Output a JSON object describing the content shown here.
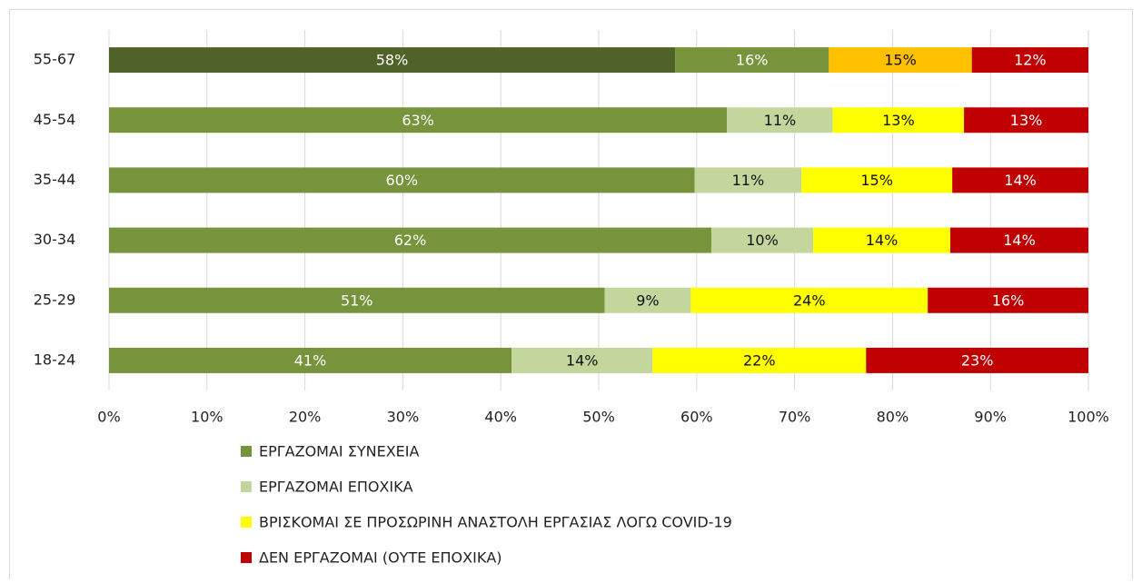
{
  "chart_data": {
    "type": "stacked_barh",
    "categories": [
      "55-67",
      "45-54",
      "35-44",
      "30-34",
      "25-29",
      "18-24"
    ],
    "series": [
      {
        "name": "ΕΡΓΑΖΟΜΑΙ ΣΥΝΕΧΕΙΑ",
        "color": "#77933c",
        "colors": [
          "#4f6228",
          "#77933c",
          "#77933c",
          "#77933c",
          "#77933c",
          "#77933c"
        ],
        "values": [
          57.8,
          63.1,
          59.8,
          61.5,
          50.6,
          41.1
        ],
        "value_labels": [
          "58%",
          "63%",
          "60%",
          "62%",
          "51%",
          "41%"
        ]
      },
      {
        "name": "ΕΡΓΑΖΟΜΑΙ ΕΠΟΧΙΚΑ",
        "color": "#c3d69b",
        "colors": [
          "#77933c",
          "#c3d69b",
          "#c3d69b",
          "#c3d69b",
          "#c3d69b",
          "#c3d69b"
        ],
        "values": [
          15.7,
          10.8,
          10.9,
          10.4,
          8.8,
          14.4
        ],
        "value_labels": [
          "16%",
          "11%",
          "11%",
          "10%",
          "9%",
          "14%"
        ]
      },
      {
        "name": "ΒΡΙΣΚΟΜΑΙ ΣΕ ΠΡΟΣΩΡΙΝΗ ΑΝΑΣΤΟΛΗ ΕΡΓΑΣΙΑΣ ΛΟΓΩ COVID-19",
        "color": "#ffff00",
        "colors": [
          "#ffc000",
          "#ffff00",
          "#ffff00",
          "#ffff00",
          "#ffff00",
          "#ffff00"
        ],
        "values": [
          14.6,
          13.4,
          15.4,
          14.0,
          24.2,
          21.8
        ],
        "value_labels": [
          "15%",
          "13%",
          "15%",
          "14%",
          "24%",
          "22%"
        ]
      },
      {
        "name": "ΔΕΝ ΕΡΓΑΖΟΜΑΙ (ΟΥΤΕ ΕΠΟΧΙΚΑ)",
        "color": "#c00000",
        "colors": [
          "#c00000",
          "#c00000",
          "#c00000",
          "#c00000",
          "#c00000",
          "#c00000"
        ],
        "values": [
          11.9,
          12.7,
          13.9,
          14.1,
          16.4,
          22.7
        ],
        "value_labels": [
          "12%",
          "13%",
          "14%",
          "14%",
          "16%",
          "23%"
        ]
      }
    ],
    "xlim": [
      0,
      100
    ],
    "xticks": [
      {
        "value": 0,
        "label": "0%"
      },
      {
        "value": 10,
        "label": "10%"
      },
      {
        "value": 20,
        "label": "20%"
      },
      {
        "value": 30,
        "label": "30%"
      },
      {
        "value": 40,
        "label": "40%"
      },
      {
        "value": 50,
        "label": "50%"
      },
      {
        "value": 60,
        "label": "60%"
      },
      {
        "value": 70,
        "label": "70%"
      },
      {
        "value": 80,
        "label": "80%"
      },
      {
        "value": 90,
        "label": "90%"
      },
      {
        "value": 100,
        "label": "100%"
      }
    ],
    "grid": true,
    "legend": "bottom"
  }
}
